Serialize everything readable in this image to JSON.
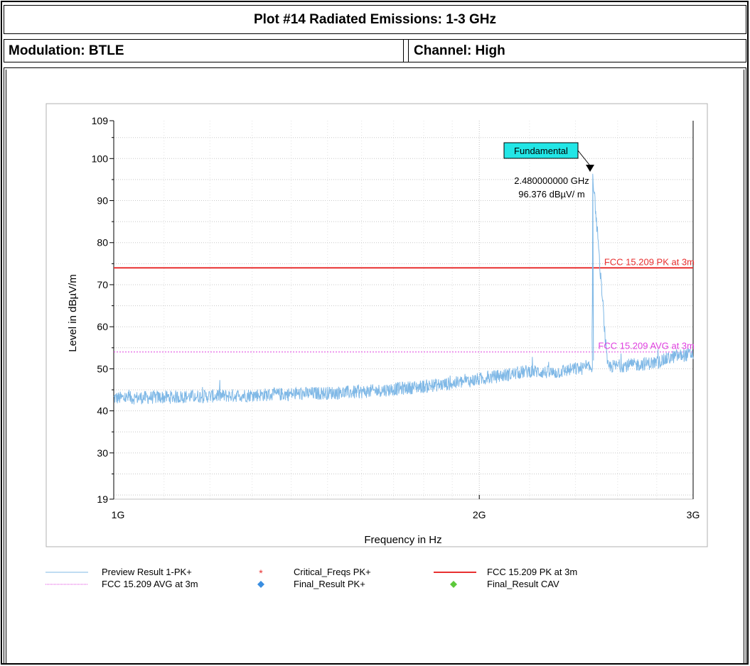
{
  "header": {
    "title": "Plot #14 Radiated Emissions: 1-3 GHz",
    "modulation": "Modulation: BTLE",
    "channel": "Channel: High"
  },
  "chart_data": {
    "type": "line",
    "xlabel": "Frequency in Hz",
    "ylabel": "Level in dBµV/m",
    "x_scale": "log",
    "xlim_hz": [
      1000000000,
      3000000000
    ],
    "ylim": [
      19,
      109
    ],
    "x_ticks": [
      {
        "value": 1000000000,
        "label": "1G"
      },
      {
        "value": 2000000000,
        "label": "2G"
      },
      {
        "value": 3000000000,
        "label": "3G"
      }
    ],
    "y_ticks": [
      19,
      30,
      40,
      50,
      60,
      70,
      80,
      90,
      100,
      109
    ],
    "grid": true,
    "series": [
      {
        "name": "Preview Result 1-PK+",
        "color": "#7fb8e6",
        "x_hz": [
          1000000000,
          1200000000,
          1400000000,
          1600000000,
          1750000000,
          1900000000,
          2000000000,
          2100000000,
          2200000000,
          2300000000,
          2400000000,
          2480000000,
          2550000000,
          2700000000,
          2800000000,
          2900000000,
          3000000000
        ],
        "values": [
          43,
          43.5,
          44,
          44.5,
          45.5,
          46.5,
          47.5,
          48.5,
          49.5,
          49,
          50,
          96.376,
          50.5,
          51,
          51.5,
          53,
          53.5
        ]
      },
      {
        "name": "FCC 15.209 PK at 3m",
        "color": "#e83030",
        "x_hz": [
          1000000000,
          3000000000
        ],
        "values": [
          74,
          74
        ]
      },
      {
        "name": "FCC 15.209 AVG at 3m",
        "color": "#e040e0",
        "x_hz": [
          1000000000,
          3000000000
        ],
        "values": [
          54,
          54
        ]
      }
    ],
    "line_labels": [
      {
        "text": "FCC 15.209 PK at 3m",
        "color": "#e83030",
        "y": 74
      },
      {
        "text": "FCC 15.209 AVG at 3m",
        "color": "#e040e0",
        "y": 54
      }
    ],
    "annotation": {
      "label": "Fundamental",
      "freq_text": "2.480000000 GHz",
      "level_text": "96.376 dBµV/ m",
      "x_hz": 2480000000,
      "y": 96.376,
      "box_color": "#22e6e6"
    },
    "legend": [
      {
        "name": "Preview Result 1-PK+",
        "symbol": "line",
        "color": "#7fb8e6"
      },
      {
        "name": "Critical_Freqs PK+",
        "symbol": "star",
        "color": "#e83030"
      },
      {
        "name": "FCC 15.209 PK at 3m",
        "symbol": "line",
        "color": "#e83030"
      },
      {
        "name": "FCC 15.209 AVG at 3m",
        "symbol": "dotted",
        "color": "#e040e0"
      },
      {
        "name": "Final_Result PK+",
        "symbol": "diamond",
        "color": "#3a8ee0"
      },
      {
        "name": "Final_Result CAV",
        "symbol": "diamond",
        "color": "#5cc83a"
      }
    ],
    "legend_position": "bottom"
  }
}
